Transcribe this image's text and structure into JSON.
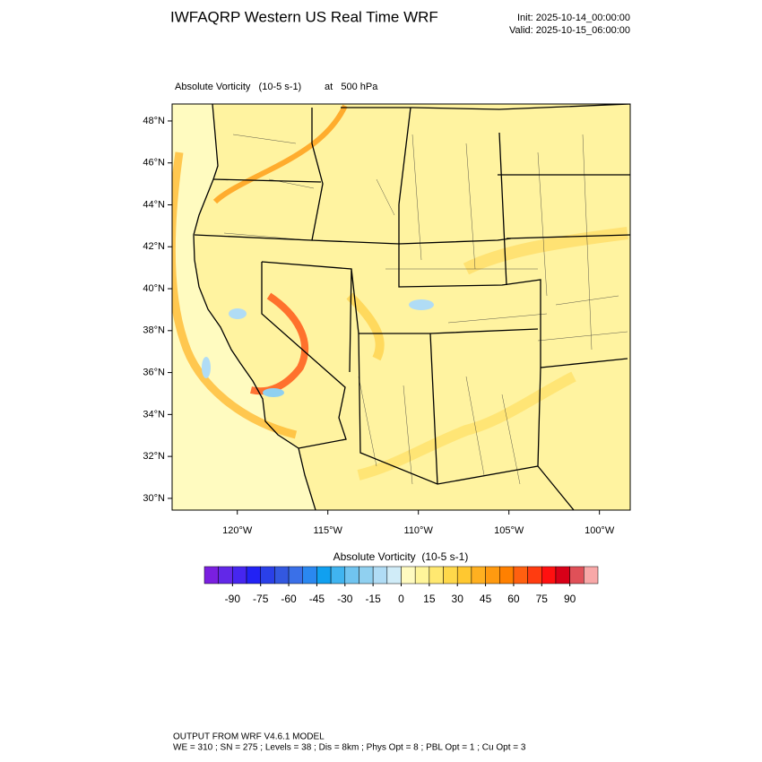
{
  "header": {
    "title": "IWFAQRP Western US Real Time WRF",
    "init": "Init: 2025-10-14_00:00:00",
    "valid": "Valid: 2025-10-15_06:00:00"
  },
  "map": {
    "field_label": "Absolute Vorticity   (10-5 s-1)",
    "level_label": "at   500 hPa",
    "ylim": [
      29.44,
      48.81
    ],
    "yticks": [
      {
        "value": 48,
        "label": "48°N"
      },
      {
        "value": 46,
        "label": "46°N"
      },
      {
        "value": 44,
        "label": "44°N"
      },
      {
        "value": 42,
        "label": "42°N"
      },
      {
        "value": 40,
        "label": "40°N"
      },
      {
        "value": 38,
        "label": "38°N"
      },
      {
        "value": 36,
        "label": "36°N"
      },
      {
        "value": 34,
        "label": "34°N"
      },
      {
        "value": 32,
        "label": "32°N"
      },
      {
        "value": 30,
        "label": "30°N"
      }
    ],
    "xlim": [
      -123.6,
      -98.3
    ],
    "xticks": [
      {
        "value": -120,
        "label": "120°W"
      },
      {
        "value": -115,
        "label": "115°W"
      },
      {
        "value": -110,
        "label": "110°W"
      },
      {
        "value": -105,
        "label": "105°W"
      },
      {
        "value": -100,
        "label": "100°W"
      }
    ]
  },
  "colorbar": {
    "title": "Absolute Vorticity  (10-5 s-1)",
    "lim": [
      -105,
      105
    ],
    "labels": [
      -90,
      -75,
      -60,
      -45,
      -30,
      -15,
      0,
      15,
      30,
      45,
      60,
      75,
      90
    ],
    "colors": [
      "#7a1fe0",
      "#6228e8",
      "#4626f0",
      "#2222f5",
      "#2a40e8",
      "#3358e0",
      "#3a70e8",
      "#2a88f0",
      "#10a0f0",
      "#40b4f0",
      "#70c4f0",
      "#90d0f0",
      "#b0dcf5",
      "#d0ecf8",
      "#fffbc0",
      "#fff59a",
      "#ffe870",
      "#ffd84a",
      "#ffc830",
      "#ffb020",
      "#ff9a10",
      "#ff8000",
      "#ff6010",
      "#ff3c10",
      "#ff1010",
      "#d80018",
      "#e05058",
      "#f8a8a8"
    ]
  },
  "footer": {
    "model": "OUTPUT FROM WRF V4.6.1 MODEL",
    "config": "WE = 310 ; SN = 275 ; Levels = 38 ; Dis = 8km ; Phys Opt = 8 ; PBL Opt = 1 ; Cu Opt = 3"
  }
}
